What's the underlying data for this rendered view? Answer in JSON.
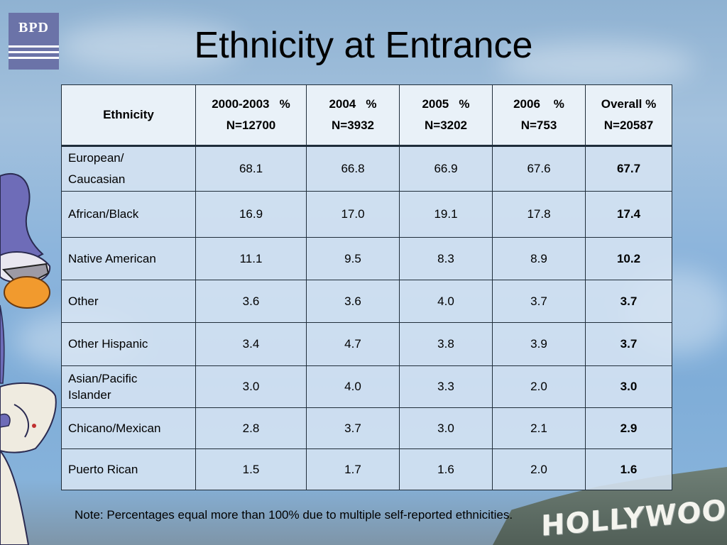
{
  "slide": {
    "title": "Ethnicity at Entrance",
    "logo_text": "BPD",
    "note": "Note: Percentages equal more than 100% due to multiple self-reported ethnicities.",
    "background_sign_text": "HOLLYWOOD"
  },
  "table": {
    "headers": [
      {
        "line1": "Ethnicity",
        "line2": ""
      },
      {
        "line1": "2000-2003   %",
        "line2": "N=12700"
      },
      {
        "line1": "2004   %",
        "line2": "N=3932"
      },
      {
        "line1": "2005   %",
        "line2": "N=3202"
      },
      {
        "line1": "2006    %",
        "line2": "N=753"
      },
      {
        "line1": "Overall %",
        "line2": "N=20587"
      }
    ],
    "rows": [
      {
        "label": "European/ Caucasian",
        "values": [
          "68.1",
          "66.8",
          "66.9",
          "67.6"
        ],
        "overall": "67.7"
      },
      {
        "label": "African/Black",
        "values": [
          "16.9",
          "17.0",
          "19.1",
          "17.8"
        ],
        "overall": "17.4"
      },
      {
        "label": "Native American",
        "values": [
          "11.1",
          "9.5",
          "8.3",
          "8.9"
        ],
        "overall": "10.2"
      },
      {
        "label": "Other",
        "values": [
          "3.6",
          "3.6",
          "4.0",
          "3.7"
        ],
        "overall": "3.7"
      },
      {
        "label": "Other Hispanic",
        "values": [
          "3.4",
          "4.7",
          "3.8",
          "3.9"
        ],
        "overall": "3.7"
      },
      {
        "label": "Asian/Pacific Islander",
        "values": [
          "3.0",
          "4.0",
          "3.3",
          "2.0"
        ],
        "overall": "3.0"
      },
      {
        "label": "Chicano/Mexican",
        "values": [
          "2.8",
          "3.7",
          "3.0",
          "2.1"
        ],
        "overall": "2.9"
      },
      {
        "label": "Puerto Rican",
        "values": [
          "1.5",
          "1.7",
          "1.6",
          "2.0"
        ],
        "overall": "1.6"
      }
    ]
  },
  "colors": {
    "logo_bg": "#6b73a8",
    "table_bg": "#d6e4f2",
    "sky": "#8db5dc"
  },
  "icons": {
    "mascot": "cartoon-roadrunner-icon"
  }
}
